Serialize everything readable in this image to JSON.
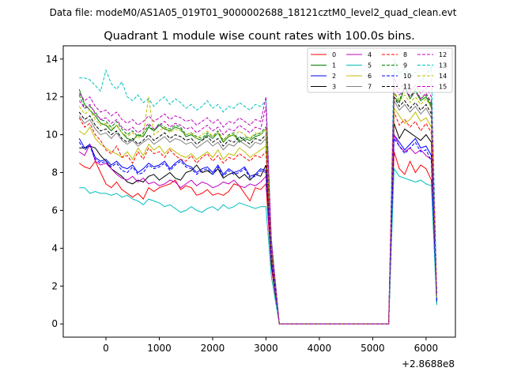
{
  "suptitle": "Data file: modeM0/AS1A05_019T01_9000002688_18121cztM0_level2_quad_clean.evt",
  "chart_data": {
    "type": "line",
    "title": "Quadrant 1 module wise count rates with 100.0s bins.",
    "xlabel": "",
    "ylabel": "",
    "x_offset_label": "+2.8688e8",
    "xlim": [
      -800,
      6550
    ],
    "ylim": [
      -0.7,
      14.7
    ],
    "xticks": [
      0,
      1000,
      2000,
      3000,
      4000,
      5000,
      6000
    ],
    "xtick_labels": [
      "0",
      "1000",
      "2000",
      "3000",
      "4000",
      "5000",
      "6000"
    ],
    "yticks": [
      0,
      2,
      4,
      6,
      8,
      10,
      12,
      14
    ],
    "ytick_labels": [
      "0",
      "2",
      "4",
      "6",
      "8",
      "10",
      "12",
      "14"
    ],
    "legend_position": "top-right",
    "x": [
      -500,
      -400,
      -300,
      -200,
      -100,
      0,
      100,
      200,
      300,
      400,
      500,
      600,
      700,
      800,
      900,
      1000,
      1100,
      1200,
      1300,
      1400,
      1500,
      1600,
      1700,
      1800,
      1900,
      2000,
      2100,
      2200,
      2300,
      2400,
      2500,
      2600,
      2700,
      2800,
      2900,
      3000,
      3100,
      3250,
      5200,
      5300,
      5400,
      5500,
      5600,
      5700,
      5800,
      5900,
      6000,
      6100,
      6200
    ],
    "series": [
      {
        "name": "0",
        "color": "#ff0000",
        "dash": "solid",
        "values": [
          8.5,
          8.3,
          8.2,
          8.6,
          8.0,
          7.4,
          7.2,
          7.5,
          7.1,
          6.9,
          6.7,
          6.9,
          6.6,
          7.2,
          7.0,
          7.2,
          7.3,
          7.4,
          7.6,
          7.1,
          7.3,
          7.2,
          6.8,
          6.9,
          7.1,
          6.8,
          6.9,
          6.8,
          7.0,
          7.4,
          7.3,
          6.9,
          6.5,
          7.2,
          7.1,
          7.4,
          3.0,
          0.0,
          0.0,
          0.0,
          9.1,
          8.2,
          7.9,
          8.6,
          8.0,
          8.4,
          8.2,
          7.6,
          1.3
        ]
      },
      {
        "name": "1",
        "color": "#008000",
        "dash": "solid",
        "values": [
          12.4,
          11.6,
          11.3,
          11.0,
          10.6,
          10.5,
          10.2,
          10.5,
          10.1,
          9.8,
          9.7,
          10.0,
          9.9,
          10.4,
          10.2,
          10.5,
          10.3,
          10.2,
          10.4,
          10.3,
          9.9,
          10.0,
          9.8,
          9.7,
          10.0,
          9.8,
          10.1,
          9.6,
          9.9,
          10.0,
          9.6,
          9.8,
          9.7,
          9.9,
          10.0,
          10.3,
          4.0,
          0.0,
          0.0,
          0.0,
          12.0,
          11.7,
          12.5,
          11.9,
          12.3,
          11.8,
          12.0,
          11.5,
          1.5
        ]
      },
      {
        "name": "2",
        "color": "#0000ff",
        "dash": "solid",
        "values": [
          9.8,
          9.3,
          9.5,
          8.8,
          8.6,
          8.7,
          8.4,
          8.6,
          8.3,
          8.2,
          8.4,
          8.0,
          8.2,
          8.5,
          8.3,
          8.4,
          8.6,
          8.2,
          8.5,
          8.7,
          8.4,
          8.3,
          8.0,
          8.2,
          8.3,
          8.0,
          8.4,
          7.9,
          8.2,
          8.0,
          8.1,
          8.3,
          7.8,
          7.9,
          8.2,
          8.1,
          3.5,
          0.0,
          0.0,
          0.0,
          10.0,
          9.6,
          9.2,
          9.5,
          9.8,
          9.3,
          9.4,
          8.9,
          1.2
        ]
      },
      {
        "name": "3",
        "color": "#000000",
        "dash": "solid",
        "values": [
          9.3,
          9.3,
          9.4,
          9.3,
          8.9,
          8.6,
          8.2,
          8.0,
          7.8,
          7.5,
          7.4,
          7.6,
          7.5,
          7.8,
          7.9,
          7.6,
          7.8,
          8.0,
          7.7,
          7.6,
          8.0,
          8.1,
          8.4,
          8.0,
          8.1,
          7.9,
          8.2,
          7.7,
          7.9,
          8.0,
          7.7,
          7.9,
          7.6,
          7.9,
          7.8,
          8.4,
          3.2,
          0.0,
          0.0,
          0.0,
          10.6,
          9.8,
          10.3,
          10.1,
          9.9,
          9.7,
          10.0,
          9.6,
          1.1
        ]
      },
      {
        "name": "4",
        "color": "#bf00bf",
        "dash": "solid",
        "values": [
          9.1,
          8.9,
          9.5,
          8.6,
          8.4,
          8.5,
          8.2,
          7.9,
          7.7,
          7.6,
          7.8,
          7.5,
          7.7,
          7.4,
          7.5,
          7.3,
          7.4,
          7.6,
          7.5,
          7.2,
          7.4,
          7.6,
          7.3,
          7.5,
          7.4,
          7.2,
          7.3,
          7.5,
          7.4,
          7.6,
          7.3,
          7.2,
          7.4,
          7.3,
          7.5,
          7.8,
          3.3,
          0.0,
          0.0,
          0.0,
          10.0,
          9.4,
          9.1,
          9.3,
          9.0,
          9.2,
          8.9,
          8.7,
          1.2
        ]
      },
      {
        "name": "5",
        "color": "#00bfbf",
        "dash": "solid",
        "values": [
          7.2,
          7.2,
          6.9,
          7.0,
          6.9,
          6.9,
          6.8,
          6.9,
          6.7,
          6.8,
          6.6,
          6.5,
          6.3,
          6.6,
          6.5,
          6.4,
          6.2,
          6.3,
          6.1,
          5.9,
          6.0,
          6.2,
          6.0,
          5.9,
          6.1,
          6.2,
          6.0,
          6.3,
          6.1,
          6.2,
          6.4,
          6.3,
          6.2,
          6.1,
          6.2,
          6.2,
          2.5,
          0.0,
          0.0,
          0.0,
          8.2,
          7.8,
          7.7,
          7.6,
          7.5,
          7.6,
          7.4,
          7.3,
          1.0
        ]
      },
      {
        "name": "6",
        "color": "#bfbf00",
        "dash": "solid",
        "values": [
          10.2,
          10.0,
          10.4,
          9.8,
          9.5,
          9.3,
          9.1,
          9.0,
          8.8,
          9.1,
          8.7,
          9.3,
          8.9,
          9.5,
          9.2,
          9.4,
          9.0,
          9.3,
          9.1,
          8.9,
          8.8,
          9.0,
          8.7,
          8.9,
          9.1,
          8.8,
          9.2,
          8.7,
          9.0,
          8.9,
          9.3,
          9.1,
          8.8,
          9.0,
          9.2,
          9.4,
          3.7,
          0.0,
          0.0,
          0.0,
          11.4,
          11.0,
          10.6,
          10.8,
          11.2,
          10.7,
          10.9,
          10.4,
          1.4
        ]
      },
      {
        "name": "7",
        "color": "#808080",
        "dash": "solid",
        "values": [
          11.0,
          10.6,
          10.8,
          10.3,
          10.0,
          10.1,
          9.8,
          10.1,
          9.7,
          9.5,
          9.7,
          9.4,
          9.6,
          9.8,
          9.5,
          9.7,
          9.9,
          9.6,
          9.8,
          9.7,
          9.5,
          9.6,
          9.3,
          9.5,
          9.7,
          9.4,
          9.6,
          9.2,
          9.5,
          9.4,
          9.7,
          9.5,
          9.3,
          9.6,
          9.5,
          9.8,
          3.9,
          0.0,
          0.0,
          0.0,
          11.8,
          11.3,
          11.6,
          11.2,
          11.5,
          11.1,
          11.4,
          10.9,
          1.5
        ]
      },
      {
        "name": "8",
        "color": "#ff0000",
        "dash": "dashed",
        "values": [
          10.9,
          10.4,
          10.6,
          10.0,
          9.7,
          9.2,
          9.0,
          9.4,
          8.8,
          8.9,
          8.5,
          9.1,
          8.7,
          9.3,
          9.0,
          9.1,
          8.8,
          9.2,
          8.9,
          8.7,
          8.6,
          8.9,
          8.5,
          8.8,
          9.0,
          8.6,
          8.9,
          8.5,
          8.8,
          8.7,
          9.0,
          8.8,
          8.6,
          8.9,
          8.8,
          9.1,
          3.6,
          0.0,
          0.0,
          0.0,
          11.2,
          10.5,
          10.8,
          10.4,
          10.7,
          10.2,
          10.6,
          10.1,
          1.4
        ]
      },
      {
        "name": "9",
        "color": "#008000",
        "dash": "dashed",
        "values": [
          12.1,
          11.4,
          11.5,
          11.2,
          10.8,
          10.7,
          10.4,
          10.7,
          10.3,
          10.0,
          10.2,
          9.9,
          10.1,
          10.5,
          10.2,
          10.6,
          10.4,
          10.3,
          10.5,
          10.4,
          10.0,
          10.1,
          9.9,
          9.8,
          10.1,
          9.9,
          10.2,
          9.7,
          10.0,
          10.1,
          9.7,
          9.9,
          9.8,
          10.0,
          10.1,
          10.4,
          4.0,
          0.0,
          0.0,
          0.0,
          12.2,
          11.8,
          12.6,
          12.0,
          12.4,
          11.9,
          12.1,
          11.6,
          1.5
        ]
      },
      {
        "name": "10",
        "color": "#0000ff",
        "dash": "dashed",
        "values": [
          9.6,
          9.2,
          9.4,
          8.7,
          8.5,
          8.6,
          8.3,
          8.5,
          8.1,
          8.0,
          8.3,
          7.9,
          8.0,
          8.4,
          8.2,
          8.3,
          8.5,
          8.1,
          8.4,
          8.6,
          8.3,
          8.2,
          7.9,
          8.1,
          8.2,
          7.9,
          8.3,
          7.8,
          8.1,
          7.9,
          8.0,
          8.2,
          7.7,
          7.8,
          8.1,
          8.0,
          3.4,
          0.0,
          0.0,
          0.0,
          9.8,
          9.4,
          9.0,
          9.3,
          9.6,
          9.1,
          9.2,
          8.6,
          1.2
        ]
      },
      {
        "name": "11",
        "color": "#000000",
        "dash": "dashed",
        "values": [
          11.2,
          10.8,
          11.0,
          10.5,
          10.2,
          10.3,
          10.0,
          10.2,
          9.8,
          9.6,
          9.8,
          9.5,
          9.7,
          10.0,
          9.7,
          9.9,
          10.1,
          9.8,
          10.0,
          9.9,
          9.7,
          9.8,
          9.5,
          9.7,
          9.9,
          9.6,
          9.8,
          9.4,
          9.7,
          9.6,
          9.9,
          9.7,
          9.5,
          9.8,
          9.7,
          10.0,
          4.0,
          0.0,
          0.0,
          0.0,
          12.0,
          11.5,
          11.8,
          11.4,
          11.7,
          11.3,
          11.6,
          11.1,
          1.5
        ]
      },
      {
        "name": "12",
        "color": "#bf00bf",
        "dash": "dashed",
        "values": [
          12.2,
          11.8,
          12.0,
          11.5,
          11.2,
          11.3,
          11.0,
          11.2,
          10.8,
          10.6,
          10.8,
          10.5,
          10.7,
          11.0,
          10.7,
          10.9,
          11.1,
          10.8,
          11.0,
          10.9,
          10.7,
          10.8,
          10.5,
          10.7,
          10.9,
          10.6,
          10.8,
          10.4,
          10.7,
          10.6,
          10.9,
          10.7,
          10.5,
          10.8,
          10.7,
          12.0,
          4.5,
          0.0,
          0.0,
          0.0,
          13.0,
          12.4,
          12.7,
          12.3,
          12.6,
          12.2,
          12.5,
          12.0,
          1.6
        ]
      },
      {
        "name": "13",
        "color": "#00bfbf",
        "dash": "dashed",
        "values": [
          13.0,
          13.0,
          12.9,
          12.6,
          12.3,
          13.4,
          12.7,
          12.4,
          12.8,
          12.0,
          11.8,
          12.1,
          11.7,
          11.9,
          11.5,
          11.8,
          12.0,
          11.6,
          11.9,
          11.7,
          11.4,
          11.6,
          11.3,
          11.5,
          11.8,
          11.4,
          11.6,
          11.2,
          11.5,
          11.4,
          11.7,
          11.5,
          11.3,
          11.6,
          11.5,
          11.8,
          4.5,
          0.0,
          0.0,
          0.0,
          14.0,
          13.2,
          13.5,
          13.0,
          13.3,
          12.8,
          13.2,
          13.6,
          1.7
        ]
      },
      {
        "name": "14",
        "color": "#bfbf00",
        "dash": "dashed",
        "values": [
          11.5,
          11.1,
          11.3,
          10.8,
          10.5,
          10.6,
          10.3,
          10.5,
          10.1,
          9.9,
          10.1,
          9.8,
          10.0,
          12.0,
          10.0,
          10.2,
          10.4,
          10.1,
          10.3,
          10.2,
          10.0,
          10.1,
          9.8,
          10.0,
          10.2,
          9.9,
          10.1,
          9.7,
          10.0,
          9.9,
          10.2,
          10.0,
          9.8,
          10.1,
          10.0,
          10.3,
          4.1,
          0.0,
          0.0,
          0.0,
          12.3,
          11.8,
          12.1,
          11.7,
          12.0,
          11.6,
          11.9,
          11.4,
          1.5
        ]
      },
      {
        "name": "15",
        "color": "#bf00bf",
        "dash": "dashed",
        "values": [
          11.8,
          11.4,
          11.6,
          11.1,
          10.8,
          10.9,
          10.6,
          10.8,
          10.4,
          10.2,
          10.4,
          10.1,
          10.3,
          10.6,
          10.3,
          10.5,
          10.7,
          10.4,
          10.6,
          10.5,
          10.3,
          10.4,
          10.1,
          10.3,
          10.5,
          10.2,
          10.4,
          10.0,
          10.3,
          10.2,
          10.5,
          10.3,
          10.1,
          10.4,
          10.3,
          11.5,
          4.3,
          0.0,
          0.0,
          0.0,
          12.6,
          12.1,
          12.4,
          12.0,
          12.3,
          11.9,
          12.2,
          11.7,
          1.6
        ]
      }
    ]
  }
}
